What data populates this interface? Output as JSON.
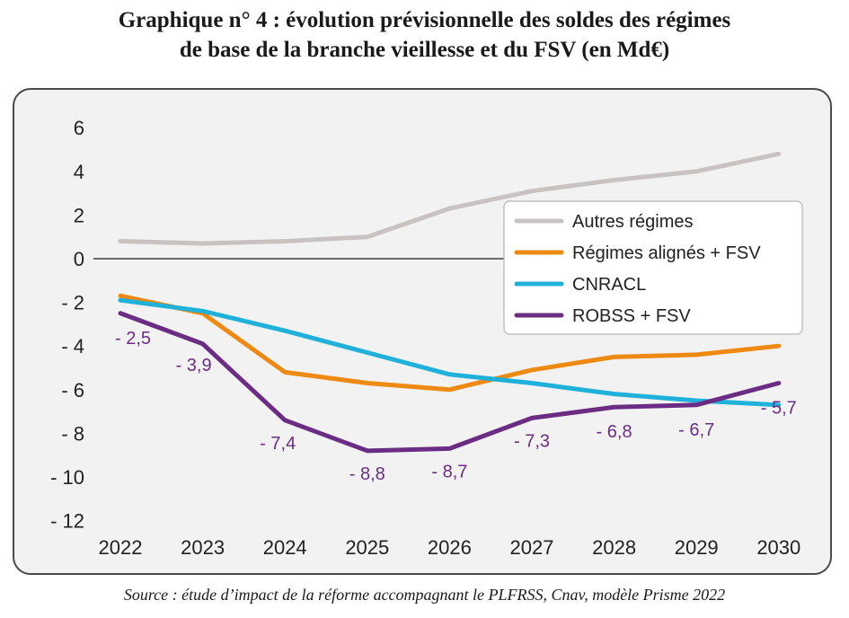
{
  "title_lines": [
    "Graphique n° 4 : évolution prévisionnelle des soldes des régimes",
    "de base de la branche vieillesse et du FSV (en Md€)"
  ],
  "source": "Source : étude d’impact de la réforme accompagnant le PLFRSS, Cnav, modèle Prisme 2022",
  "chart_data": {
    "type": "line",
    "x": [
      2022,
      2023,
      2024,
      2025,
      2026,
      2027,
      2028,
      2029,
      2030
    ],
    "x_tick_labels": [
      "2022",
      "2023",
      "2024",
      "2025",
      "2026",
      "2027",
      "2028",
      "2029",
      "2030"
    ],
    "ylim": [
      -12,
      6
    ],
    "y_ticks": [
      6,
      4,
      2,
      0,
      -2,
      -4,
      -6,
      -8,
      -10,
      -12
    ],
    "y_tick_labels": [
      "6",
      "4",
      "2",
      "0",
      "- 2",
      "- 4",
      "- 6",
      "- 8",
      "- 10",
      "- 12"
    ],
    "grid": "horizontal",
    "legend_position": "right",
    "series": [
      {
        "name": "Autres régimes",
        "color": "#c8c3c0",
        "values": [
          0.8,
          0.7,
          0.8,
          1.0,
          2.3,
          3.1,
          3.6,
          4.0,
          4.8
        ]
      },
      {
        "name": "Régimes alignés + FSV",
        "color": "#ee8a12",
        "values": [
          -1.7,
          -2.5,
          -5.2,
          -5.7,
          -6.0,
          -5.1,
          -4.5,
          -4.4,
          -4.0
        ]
      },
      {
        "name": "CNRACL",
        "color": "#1fb1d9",
        "values": [
          -1.9,
          -2.4,
          -3.3,
          -4.3,
          -5.3,
          -5.7,
          -6.2,
          -6.5,
          -6.7
        ]
      },
      {
        "name": "ROBSS + FSV",
        "color": "#6b2d84",
        "values": [
          -2.5,
          -3.9,
          -7.4,
          -8.8,
          -8.7,
          -7.3,
          -6.8,
          -6.7,
          -5.7
        ]
      }
    ],
    "data_labels": {
      "series": "ROBSS + FSV",
      "color": "#6b2d84",
      "labels": [
        "- 2,5",
        "- 3,9",
        "- 7,4",
        "- 8,8",
        "- 8,7",
        "- 7,3",
        "- 6,8",
        "- 6,7",
        "- 5,7"
      ]
    }
  }
}
